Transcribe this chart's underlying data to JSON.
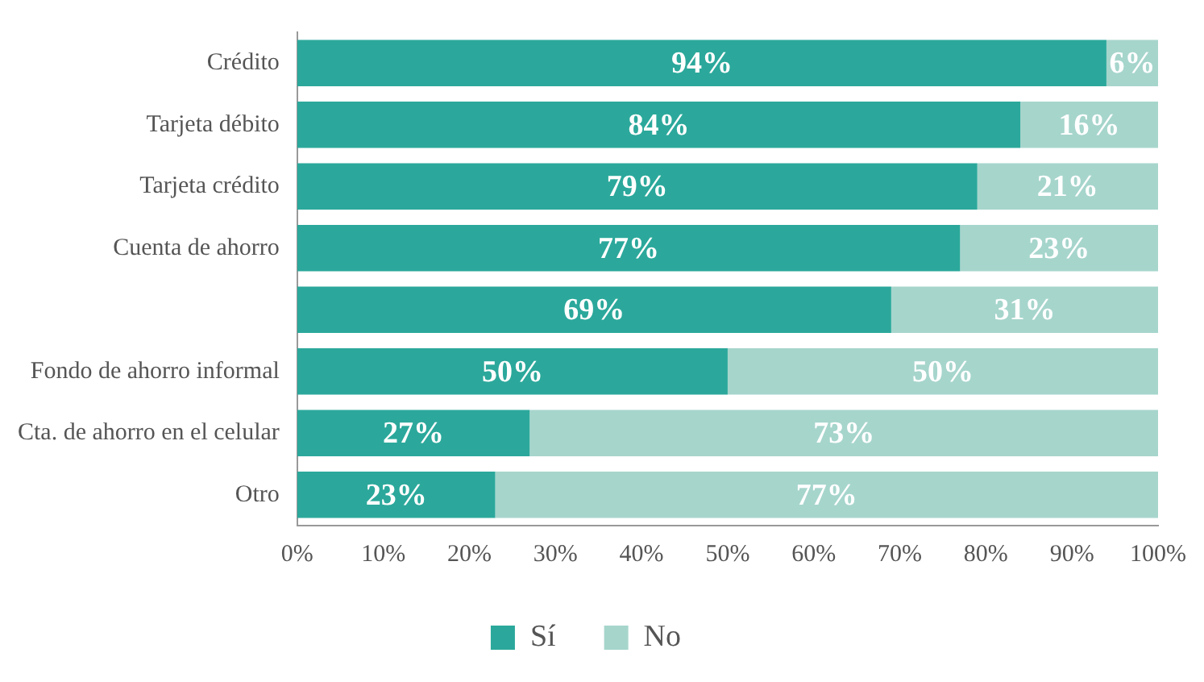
{
  "chart_data": {
    "type": "bar",
    "orientation": "horizontal",
    "stacked": true,
    "categories": [
      "Crédito",
      "Tarjeta débito",
      "Tarjeta crédito",
      "Cuenta de ahorro",
      null,
      "Fondo de ahorro informal",
      "Cta. de ahorro en el celular",
      "Otro"
    ],
    "series": [
      {
        "name": "Sí",
        "color": "#2ba89b",
        "values": [
          94,
          84,
          79,
          77,
          69,
          50,
          27,
          23
        ],
        "value_labels": [
          "94%",
          "84%",
          "79%",
          "77%",
          "69%",
          "50%",
          "27%",
          "23%"
        ]
      },
      {
        "name": "No",
        "color": "#a6d5cc",
        "values": [
          6,
          16,
          21,
          23,
          31,
          50,
          73,
          77
        ],
        "value_labels": [
          "6%",
          "16%",
          "21%",
          "23%",
          "31%",
          "50%",
          "73%",
          "77%"
        ]
      }
    ],
    "xlim": [
      0,
      100
    ],
    "xticks": [
      {
        "value": 0,
        "label": "0%"
      },
      {
        "value": 10,
        "label": "10%"
      },
      {
        "value": 20,
        "label": "20%"
      },
      {
        "value": 30,
        "label": "30%"
      },
      {
        "value": 40,
        "label": "40%"
      },
      {
        "value": 50,
        "label": "50%"
      },
      {
        "value": 60,
        "label": "60%"
      },
      {
        "value": 70,
        "label": "70%"
      },
      {
        "value": 80,
        "label": "80%"
      },
      {
        "value": 90,
        "label": "90%"
      },
      {
        "value": 100,
        "label": "100%"
      }
    ],
    "grid": false,
    "legend": "bottom"
  }
}
